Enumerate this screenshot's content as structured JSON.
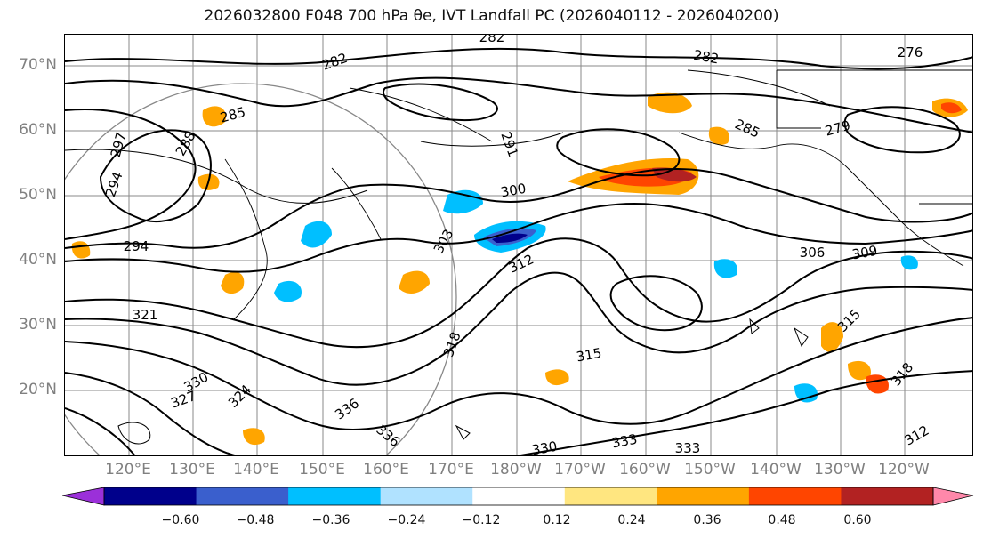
{
  "title": "2026032800 F048 700 hPa θe, IVT Landfall PC (2026040112 - 2026040200)",
  "latitude_labels": [
    "70°N",
    "60°N",
    "50°N",
    "40°N",
    "30°N",
    "20°N"
  ],
  "longitude_labels": [
    "120°E",
    "130°E",
    "140°E",
    "150°E",
    "160°E",
    "170°E",
    "180°W",
    "170°W",
    "160°W",
    "150°W",
    "140°W",
    "130°W",
    "120°W"
  ],
  "contour_labels": [
    "282",
    "282",
    "282",
    "276",
    "285",
    "285",
    "279",
    "288",
    "297",
    "291",
    "294",
    "294",
    "300",
    "303",
    "312",
    "306",
    "309",
    "321",
    "318",
    "315",
    "315",
    "330",
    "327",
    "324",
    "336",
    "336",
    "330",
    "333",
    "333",
    "318",
    "312"
  ],
  "colorbar": {
    "tick_labels": [
      "−0.60",
      "−0.48",
      "−0.36",
      "−0.24",
      "−0.12",
      "0.12",
      "0.24",
      "0.36",
      "0.48",
      "0.60"
    ],
    "colors": [
      "#9b30d9",
      "#00008b",
      "#3a5fcd",
      "#00bfff",
      "#b0e2ff",
      "#ffffff",
      "#ffe680",
      "#ffa500",
      "#ff4500",
      "#b22222",
      "#ff88aa"
    ]
  }
}
